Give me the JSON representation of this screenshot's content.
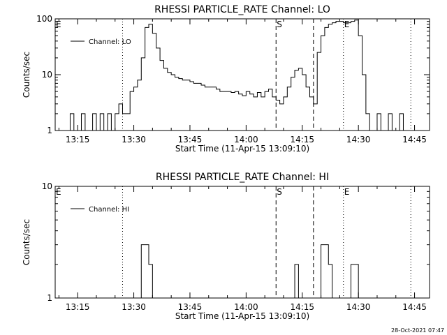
{
  "chart_data": [
    {
      "type": "line",
      "title": "RHESSI PARTICLE_RATE Channel: LO",
      "xlabel": "Start Time (11-Apr-15 13:09:10)",
      "ylabel": "Counts/sec",
      "yscale": "log",
      "ylim": [
        1,
        100
      ],
      "xlim": [
        "13:09",
        "14:49"
      ],
      "x_ticks": [
        "13:15",
        "13:30",
        "13:45",
        "14:00",
        "14:15",
        "14:30",
        "14:45"
      ],
      "y_ticks": [
        "1",
        "10",
        "100"
      ],
      "legend": {
        "label": "Channel: LO",
        "placement": "top-left"
      },
      "markers": [
        {
          "time": "13:27",
          "style": "dotted",
          "label": ""
        },
        {
          "time": "14:08",
          "style": "dashed",
          "label": "S"
        },
        {
          "time": "14:18",
          "style": "dashed",
          "label": ""
        },
        {
          "time": "14:26",
          "style": "dotted",
          "label": "E"
        },
        {
          "time": "14:44",
          "style": "dotted",
          "label": ""
        }
      ],
      "edge_label": "E",
      "series": [
        {
          "x": [
            "13:11",
            "13:12",
            "13:13",
            "13:14",
            "13:15",
            "13:16",
            "13:17",
            "13:18",
            "13:19",
            "13:20",
            "13:21",
            "13:22",
            "13:23",
            "13:24",
            "13:25",
            "13:26",
            "13:27",
            "13:28",
            "13:29",
            "13:30",
            "13:31",
            "13:32",
            "13:33",
            "13:34",
            "13:35",
            "13:36",
            "13:37",
            "13:38",
            "13:39",
            "13:40",
            "13:41",
            "13:42",
            "13:43",
            "13:44",
            "13:45",
            "13:46",
            "13:47",
            "13:48",
            "13:49",
            "13:50",
            "13:51",
            "13:52",
            "13:53",
            "13:54",
            "13:55",
            "13:56",
            "13:57",
            "13:58",
            "13:59",
            "14:00",
            "14:01",
            "14:02",
            "14:03",
            "14:04",
            "14:05",
            "14:06",
            "14:07",
            "14:08",
            "14:09",
            "14:10",
            "14:11",
            "14:12",
            "14:13",
            "14:14",
            "14:15",
            "14:16",
            "14:17",
            "14:18",
            "14:19",
            "14:20",
            "14:21",
            "14:22",
            "14:23",
            "14:24",
            "14:25",
            "14:26",
            "14:27",
            "14:28",
            "14:29",
            "14:30",
            "14:31",
            "14:32",
            "14:33",
            "14:34",
            "14:35",
            "14:36",
            "14:37",
            "14:38",
            "14:39",
            "14:40",
            "14:41",
            "14:42",
            "14:43",
            "14:44",
            "14:45",
            "14:46",
            "14:47",
            "14:48"
          ],
          "y": [
            1,
            1,
            2,
            1,
            1,
            2,
            1,
            1,
            2,
            1,
            2,
            1,
            2,
            1,
            2,
            3,
            2,
            2,
            5,
            6,
            8,
            20,
            70,
            80,
            55,
            30,
            18,
            13,
            11,
            10,
            9,
            8.5,
            8,
            8,
            7.5,
            7,
            7,
            6.5,
            6,
            6,
            6,
            5.5,
            5,
            5,
            5,
            4.8,
            5,
            4.5,
            4.2,
            5,
            4.5,
            4,
            4.8,
            4,
            5,
            5.5,
            4,
            3.5,
            3,
            4,
            6,
            9,
            12,
            13,
            10,
            6,
            4,
            3,
            25,
            50,
            70,
            80,
            85,
            90,
            90,
            85,
            85,
            90,
            95,
            50,
            10,
            2,
            1,
            1,
            2,
            1,
            1,
            2,
            1,
            1,
            2,
            1,
            1,
            1,
            1,
            1,
            1,
            1
          ]
        }
      ]
    },
    {
      "type": "line",
      "title": "RHESSI PARTICLE_RATE Channel: HI",
      "xlabel": "Start Time (11-Apr-15 13:09:10)",
      "ylabel": "Counts/sec",
      "yscale": "log",
      "ylim": [
        1,
        10
      ],
      "xlim": [
        "13:09",
        "14:49"
      ],
      "x_ticks": [
        "13:15",
        "13:30",
        "13:45",
        "14:00",
        "14:15",
        "14:30",
        "14:45"
      ],
      "y_ticks": [
        "1",
        "10"
      ],
      "legend": {
        "label": "Channel: HI",
        "placement": "top-left"
      },
      "markers": [
        {
          "time": "13:27",
          "style": "dotted",
          "label": ""
        },
        {
          "time": "14:08",
          "style": "dashed",
          "label": "S"
        },
        {
          "time": "14:18",
          "style": "dashed",
          "label": ""
        },
        {
          "time": "14:26",
          "style": "dotted",
          "label": "E"
        },
        {
          "time": "14:44",
          "style": "dotted",
          "label": ""
        }
      ],
      "edge_label": "E",
      "series": [
        {
          "x": [
            "13:09",
            "13:31",
            "13:32",
            "13:33",
            "13:34",
            "13:35",
            "14:12",
            "14:13",
            "14:14",
            "14:19",
            "14:20",
            "14:21",
            "14:22",
            "14:23",
            "14:24",
            "14:27",
            "14:28",
            "14:29",
            "14:30",
            "14:49"
          ],
          "y": [
            1,
            1,
            3,
            3,
            2,
            1,
            1,
            2,
            1,
            1,
            3,
            3,
            2,
            1,
            1,
            1,
            2,
            2,
            1,
            1
          ]
        }
      ]
    }
  ],
  "timestamp": "28-Oct-2021 07:47"
}
